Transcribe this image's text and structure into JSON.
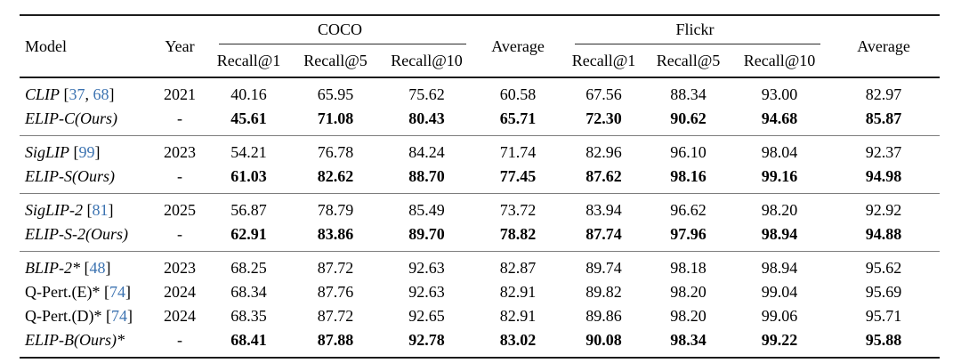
{
  "colors": {
    "citation_blue": "#3b72b0",
    "text": "#000000",
    "rule_heavy": "#1c1c1c",
    "rule_group_separator": "#7d7d7d",
    "background": "#ffffff"
  },
  "table": {
    "headers": {
      "model": "Model",
      "year": "Year",
      "group_coco": "COCO",
      "group_flickr": "Flickr",
      "average_coco": "Average",
      "average_flickr": "Average",
      "sub_coco": [
        "Recall@1",
        "Recall@5",
        "Recall@10"
      ],
      "sub_flickr": [
        "Recall@1",
        "Recall@5",
        "Recall@10"
      ]
    },
    "groups": [
      {
        "rows": [
          {
            "model": "CLIP",
            "citations": [
              "37",
              "68"
            ],
            "italic": true,
            "year": "2021",
            "bold": false,
            "values": [
              "40.16",
              "65.95",
              "75.62",
              "60.58",
              "67.56",
              "88.34",
              "93.00",
              "82.97"
            ]
          },
          {
            "model": "ELIP-C(Ours)",
            "citations": [],
            "italic": true,
            "year": "-",
            "bold": true,
            "values": [
              "45.61",
              "71.08",
              "80.43",
              "65.71",
              "72.30",
              "90.62",
              "94.68",
              "85.87"
            ]
          }
        ]
      },
      {
        "rows": [
          {
            "model": "SigLIP",
            "citations": [
              "99"
            ],
            "italic": true,
            "year": "2023",
            "bold": false,
            "values": [
              "54.21",
              "76.78",
              "84.24",
              "71.74",
              "82.96",
              "96.10",
              "98.04",
              "92.37"
            ]
          },
          {
            "model": "ELIP-S(Ours)",
            "citations": [],
            "italic": true,
            "year": "-",
            "bold": true,
            "values": [
              "61.03",
              "82.62",
              "88.70",
              "77.45",
              "87.62",
              "98.16",
              "99.16",
              "94.98"
            ]
          }
        ]
      },
      {
        "rows": [
          {
            "model": "SigLIP-2",
            "citations": [
              "81"
            ],
            "italic": true,
            "year": "2025",
            "bold": false,
            "values": [
              "56.87",
              "78.79",
              "85.49",
              "73.72",
              "83.94",
              "96.62",
              "98.20",
              "92.92"
            ]
          },
          {
            "model": "ELIP-S-2(Ours)",
            "citations": [],
            "italic": true,
            "year": "-",
            "bold": true,
            "values": [
              "62.91",
              "83.86",
              "89.70",
              "78.82",
              "87.74",
              "97.96",
              "98.94",
              "94.88"
            ]
          }
        ]
      },
      {
        "rows": [
          {
            "model": "BLIP-2*",
            "citations": [
              "48"
            ],
            "italic": true,
            "year": "2023",
            "bold": false,
            "values": [
              "68.25",
              "87.72",
              "92.63",
              "82.87",
              "89.74",
              "98.18",
              "98.94",
              "95.62"
            ]
          },
          {
            "model": "Q-Pert.(E)*",
            "citations": [
              "74"
            ],
            "italic": false,
            "year": "2024",
            "bold": false,
            "values": [
              "68.34",
              "87.76",
              "92.63",
              "82.91",
              "89.82",
              "98.20",
              "99.04",
              "95.69"
            ]
          },
          {
            "model": "Q-Pert.(D)*",
            "citations": [
              "74"
            ],
            "italic": false,
            "year": "2024",
            "bold": false,
            "values": [
              "68.35",
              "87.72",
              "92.65",
              "82.91",
              "89.86",
              "98.20",
              "99.06",
              "95.71"
            ]
          },
          {
            "model": "ELIP-B(Ours)*",
            "citations": [],
            "italic": true,
            "year": "-",
            "bold": true,
            "values": [
              "68.41",
              "87.88",
              "92.78",
              "83.02",
              "90.08",
              "98.34",
              "99.22",
              "95.88"
            ]
          }
        ]
      }
    ]
  }
}
